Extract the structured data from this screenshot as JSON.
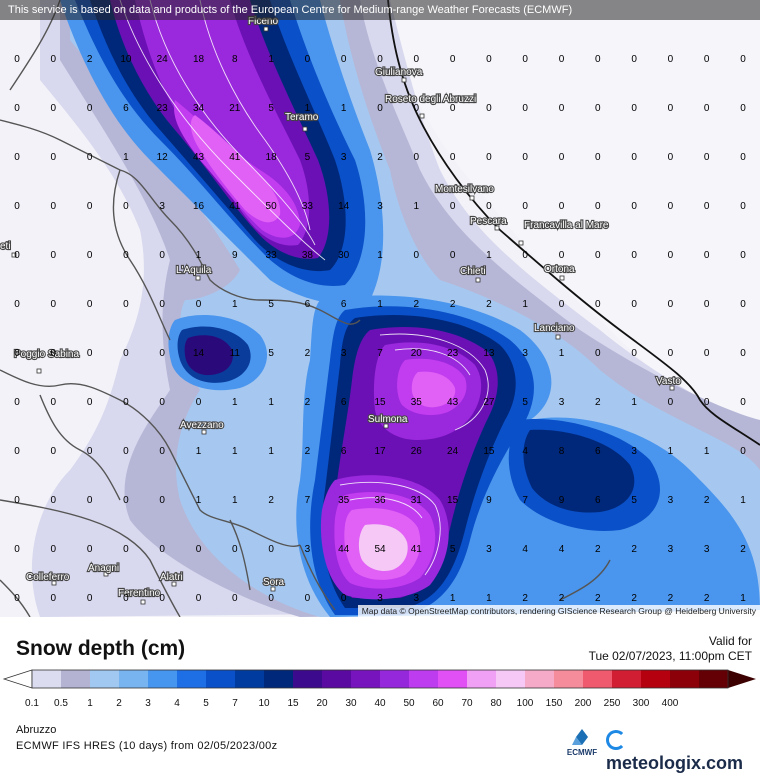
{
  "banner": "This service is based on data and products of the European Centre for Medium-range Weather Forecasts (ECMWF)",
  "attribution": "Map data © OpenStreetMap contributors, rendering GIScience Research Group @ Heidelberg University",
  "legend": {
    "title": "Snow depth (cm)",
    "valid_label": "Valid for",
    "valid_time": "Tue 02/07/2023, 11:00pm CET",
    "region": "Abruzzo",
    "model": "ECMWF IFS HRES (10 days) from 02/05/2023/00z",
    "brand": "meteologix.com",
    "ecmwf": "ECMWF",
    "ticks": [
      "0.1",
      "0.5",
      "1",
      "2",
      "3",
      "4",
      "5",
      "7",
      "10",
      "15",
      "20",
      "30",
      "40",
      "50",
      "60",
      "70",
      "80",
      "100",
      "150",
      "200",
      "250",
      "300",
      "400"
    ],
    "colors": [
      "#dcdcf0",
      "#b4b4d2",
      "#a0c8f0",
      "#78b4f0",
      "#4696f0",
      "#1e6ee6",
      "#0a50c8",
      "#003ca0",
      "#00287a",
      "#3c0a8c",
      "#5a0aa0",
      "#7814be",
      "#9628dc",
      "#be3cf0",
      "#e150f5",
      "#f0a0f5",
      "#f5c8f5",
      "#f5aac8",
      "#f58c9b",
      "#f05a6e",
      "#d21e32",
      "#b4000f",
      "#8c000a",
      "#640005"
    ]
  },
  "cities": [
    "Ficeno",
    "Giulianova",
    "Roseto degli Abruzzi",
    "Teramo",
    "Montesilvano",
    "Pescara",
    "Francavilla al Mare",
    "Chieti",
    "Ortona",
    "L'Aquila",
    "Lanciano",
    "Poggio Sabina",
    "Vasto",
    "Sulmona",
    "Avezzano",
    "Colleferro",
    "Anagni",
    "Alatri",
    "Ferentino",
    "Sora",
    "eti"
  ],
  "grid_values": [
    [
      "0",
      "0",
      "2",
      "10",
      "24",
      "18",
      "8",
      "1",
      "0",
      "0",
      "0",
      "0",
      "0",
      "0",
      "0",
      "0",
      "0",
      "0",
      "0",
      "0",
      "0"
    ],
    [
      "0",
      "0",
      "0",
      "6",
      "23",
      "34",
      "21",
      "5",
      "1",
      "1",
      "0",
      "0",
      "0",
      "0",
      "0",
      "0",
      "0",
      "0",
      "0",
      "0",
      "0"
    ],
    [
      "0",
      "0",
      "0",
      "1",
      "12",
      "43",
      "41",
      "18",
      "5",
      "3",
      "2",
      "0",
      "0",
      "0",
      "0",
      "0",
      "0",
      "0",
      "0",
      "0",
      "0"
    ],
    [
      "0",
      "0",
      "0",
      "0",
      "3",
      "16",
      "41",
      "50",
      "33",
      "14",
      "3",
      "1",
      "0",
      "0",
      "0",
      "0",
      "0",
      "0",
      "0",
      "0",
      "0"
    ],
    [
      "0",
      "0",
      "0",
      "0",
      "0",
      "1",
      "9",
      "33",
      "38",
      "30",
      "1",
      "0",
      "0",
      "1",
      "0",
      "0",
      "0",
      "0",
      "0",
      "0",
      "0"
    ],
    [
      "0",
      "0",
      "0",
      "0",
      "0",
      "0",
      "1",
      "5",
      "6",
      "6",
      "1",
      "2",
      "2",
      "2",
      "1",
      "0",
      "0",
      "0",
      "0",
      "0",
      "0"
    ],
    [
      "0",
      "0",
      "0",
      "0",
      "0",
      "14",
      "11",
      "5",
      "2",
      "3",
      "7",
      "20",
      "23",
      "13",
      "3",
      "1",
      "0",
      "0",
      "0",
      "0",
      "0"
    ],
    [
      "0",
      "0",
      "0",
      "0",
      "0",
      "0",
      "1",
      "1",
      "2",
      "6",
      "15",
      "35",
      "43",
      "27",
      "5",
      "3",
      "2",
      "1",
      "0",
      "0",
      "0"
    ],
    [
      "0",
      "0",
      "0",
      "0",
      "0",
      "1",
      "1",
      "1",
      "2",
      "6",
      "17",
      "26",
      "24",
      "15",
      "4",
      "8",
      "6",
      "3",
      "1",
      "1",
      "0"
    ],
    [
      "0",
      "0",
      "0",
      "0",
      "0",
      "1",
      "1",
      "2",
      "7",
      "35",
      "36",
      "31",
      "15",
      "9",
      "7",
      "9",
      "6",
      "5",
      "3",
      "2",
      "1"
    ],
    [
      "0",
      "0",
      "0",
      "0",
      "0",
      "0",
      "0",
      "0",
      "3",
      "44",
      "54",
      "41",
      "5",
      "3",
      "4",
      "4",
      "2",
      "2",
      "3",
      "3",
      "2"
    ],
    [
      "0",
      "0",
      "0",
      "0",
      "0",
      "0",
      "0",
      "0",
      "0",
      "0",
      "3",
      "3",
      "1",
      "1",
      "2",
      "2",
      "2",
      "2",
      "2",
      "2",
      "1"
    ]
  ]
}
